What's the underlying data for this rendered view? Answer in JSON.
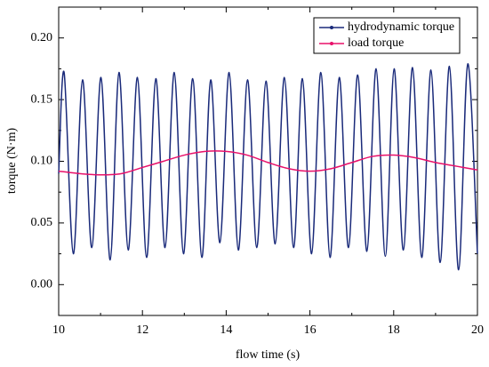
{
  "chart_data": {
    "type": "line",
    "xlabel": "flow time (s)",
    "ylabel": "torque (N·m)",
    "xlim": [
      10,
      20
    ],
    "xticks": [
      10,
      12,
      14,
      16,
      18,
      20
    ],
    "ylim": [
      -0.025,
      0.225
    ],
    "yticks": [
      {
        "value": 0,
        "label": "0.00"
      },
      {
        "value": 0.05,
        "label": "0.05"
      },
      {
        "value": 0.1,
        "label": "0.10"
      },
      {
        "value": 0.15,
        "label": "0.15"
      },
      {
        "value": 0.2,
        "label": "0.20"
      }
    ],
    "legend": "upper right",
    "series": [
      {
        "name": "hydrodynamic torque",
        "color": "#1a2a7a",
        "x": [
          10.0,
          10.13,
          10.35,
          10.57,
          10.79,
          11.01,
          11.23,
          11.44,
          11.66,
          11.88,
          12.1,
          12.32,
          12.54,
          12.76,
          12.98,
          13.2,
          13.42,
          13.63,
          13.85,
          14.07,
          14.29,
          14.51,
          14.73,
          14.95,
          15.17,
          15.39,
          15.61,
          15.82,
          16.04,
          16.26,
          16.48,
          16.7,
          16.92,
          17.14,
          17.36,
          17.58,
          17.8,
          18.01,
          18.23,
          18.45,
          18.67,
          18.89,
          19.11,
          19.33,
          19.55,
          19.77,
          20.0
        ],
        "values": [
          0.09,
          0.172,
          0.025,
          0.166,
          0.03,
          0.168,
          0.02,
          0.172,
          0.028,
          0.168,
          0.022,
          0.167,
          0.03,
          0.172,
          0.025,
          0.167,
          0.022,
          0.166,
          0.034,
          0.172,
          0.028,
          0.166,
          0.03,
          0.165,
          0.033,
          0.168,
          0.03,
          0.167,
          0.025,
          0.172,
          0.022,
          0.168,
          0.03,
          0.17,
          0.027,
          0.175,
          0.023,
          0.175,
          0.028,
          0.176,
          0.022,
          0.174,
          0.018,
          0.177,
          0.012,
          0.179,
          0.025
        ]
      },
      {
        "name": "load torque",
        "color": "#e8106a",
        "x": [
          10,
          10.5,
          11,
          11.5,
          12,
          12.5,
          13,
          13.5,
          14,
          14.5,
          15,
          15.5,
          16,
          16.5,
          17,
          17.5,
          18,
          18.5,
          19,
          19.5,
          20
        ],
        "values": [
          0.092,
          0.09,
          0.089,
          0.09,
          0.095,
          0.1,
          0.105,
          0.108,
          0.108,
          0.105,
          0.099,
          0.094,
          0.092,
          0.094,
          0.099,
          0.104,
          0.105,
          0.103,
          0.099,
          0.096,
          0.093
        ]
      }
    ]
  }
}
